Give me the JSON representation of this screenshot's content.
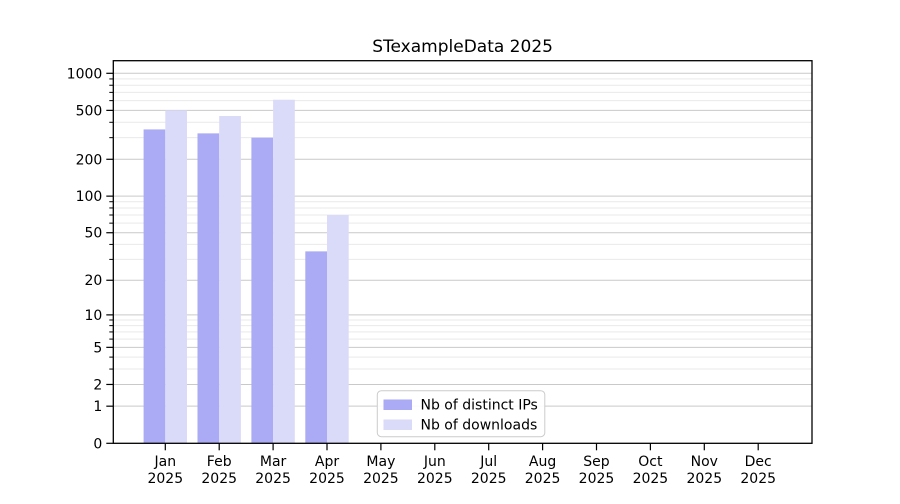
{
  "chart_data": {
    "type": "bar",
    "title": "STexampleData 2025",
    "year": "2025",
    "categories": [
      "Jan",
      "Feb",
      "Mar",
      "Apr",
      "May",
      "Jun",
      "Jul",
      "Aug",
      "Sep",
      "Oct",
      "Nov",
      "Dec"
    ],
    "series": [
      {
        "name": "Nb of distinct IPs",
        "color": "#aaaaf5",
        "values": [
          350,
          325,
          300,
          35,
          null,
          null,
          null,
          null,
          null,
          null,
          null,
          null
        ]
      },
      {
        "name": "Nb of downloads",
        "color": "#dadaf9",
        "values": [
          500,
          450,
          610,
          70,
          null,
          null,
          null,
          null,
          null,
          null,
          null,
          null
        ]
      }
    ],
    "y_scale": "log10(1+v)",
    "y_ticks": [
      0,
      1,
      2,
      5,
      10,
      20,
      50,
      100,
      200,
      500,
      1000
    ],
    "y_minor_ticks": [
      3,
      4,
      6,
      7,
      8,
      9,
      30,
      40,
      60,
      70,
      80,
      90,
      300,
      400,
      600,
      700,
      800,
      900
    ],
    "ylim": [
      0,
      1266
    ],
    "grid": "on",
    "legend_position": "lower-center-left",
    "colors": {
      "major_grid": "#c9c9c9",
      "minor_grid": "#e9e9e9",
      "axis": "#000000",
      "legend_border": "#cccccc",
      "background": "#ffffff"
    }
  }
}
